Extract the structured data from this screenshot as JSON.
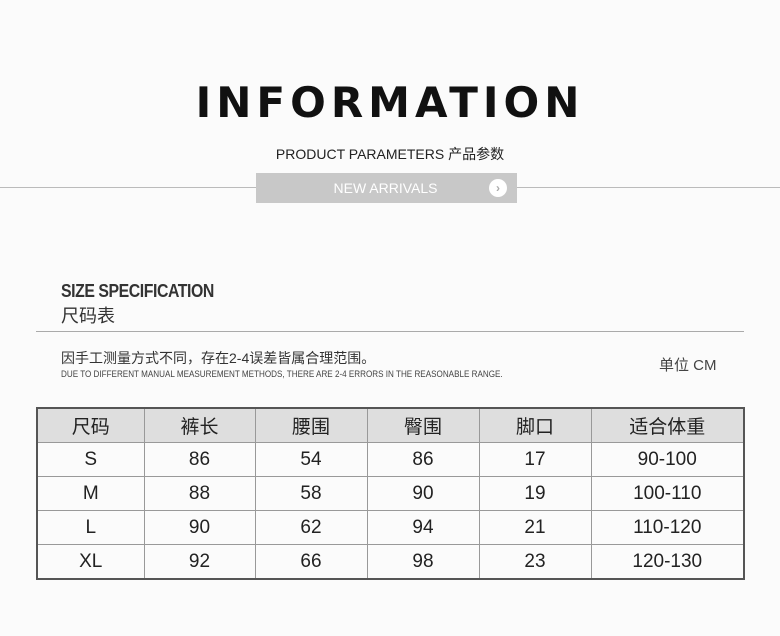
{
  "header": {
    "title": "INFORMATION",
    "subtitle": "PRODUCT PARAMETERS 产品参数",
    "banner_label": "NEW ARRIVALS",
    "banner_icon": "chevron-right-circle-icon"
  },
  "section": {
    "title_en": "SIZE SPECIFICATION",
    "title_cn": "尺码表"
  },
  "note": {
    "cn": "因手工测量方式不同，存在2-4误差皆属合理范围。",
    "en": "DUE TO DIFFERENT MANUAL MEASUREMENT METHODS, THERE ARE 2-4 ERRORS IN THE REASONABLE RANGE.",
    "unit": "单位 CM"
  },
  "table": {
    "headers": [
      "尺码",
      "裤长",
      "腰围",
      "臀围",
      "脚口",
      "适合体重"
    ],
    "rows": [
      [
        "S",
        "86",
        "54",
        "86",
        "17",
        "90-100"
      ],
      [
        "M",
        "88",
        "58",
        "90",
        "19",
        "100-110"
      ],
      [
        "L",
        "90",
        "62",
        "94",
        "21",
        "110-120"
      ],
      [
        "XL",
        "92",
        "66",
        "98",
        "23",
        "120-130"
      ]
    ]
  }
}
